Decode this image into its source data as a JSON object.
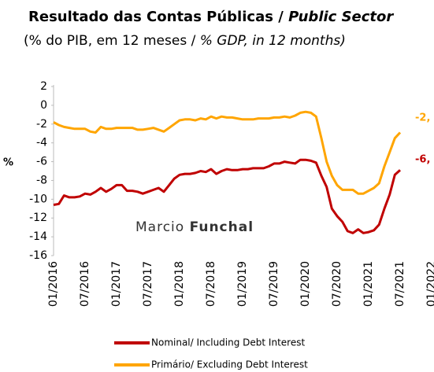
{
  "chart_data": {
    "type": "line",
    "title": "Resultado das Contas Públicas /",
    "title_en": "Public Sector",
    "subtitle": "(% do PIB, em 12 meses /",
    "subtitle_en": "% GDP, in 12 months)",
    "y_label": "%",
    "watermark": "Marcio",
    "watermark_bold": "Funchal",
    "categories": [
      "01/2016",
      null,
      null,
      null,
      null,
      null,
      "07/2016",
      null,
      null,
      null,
      null,
      null,
      "01/2017",
      null,
      null,
      null,
      null,
      null,
      "07/2017",
      null,
      null,
      null,
      null,
      null,
      "01/2018",
      null,
      null,
      null,
      null,
      null,
      "07/2018",
      null,
      null,
      null,
      null,
      null,
      "01/2019",
      null,
      null,
      null,
      null,
      null,
      "07/2019",
      null,
      null,
      null,
      null,
      null,
      "01/2020",
      null,
      null,
      null,
      null,
      null,
      "07/2020",
      null,
      null,
      null,
      null,
      null,
      "01/2021",
      null,
      null,
      null,
      null,
      null,
      "07/2021",
      null,
      null,
      null,
      null,
      null,
      "01/2022"
    ],
    "series": [
      {
        "name": "Nominal/ Including Debt Interest",
        "color": "#c00000",
        "values": [
          -10.6,
          -10.5,
          -9.6,
          -9.8,
          -9.8,
          -9.7,
          -9.4,
          -9.5,
          -9.2,
          -8.8,
          -9.2,
          -8.9,
          -8.5,
          -8.5,
          -9.1,
          -9.1,
          -9.2,
          -9.4,
          -9.2,
          -9.0,
          -8.8,
          -9.2,
          -8.5,
          -7.8,
          -7.4,
          -7.3,
          -7.3,
          -7.2,
          -7.0,
          -7.1,
          -6.8,
          -7.3,
          -7.0,
          -6.8,
          -6.9,
          -6.9,
          -6.8,
          -6.8,
          -6.7,
          -6.7,
          -6.7,
          -6.5,
          -6.2,
          -6.2,
          -6.0,
          -6.1,
          -6.2,
          -5.8,
          -5.8,
          -5.9,
          -6.1,
          -7.5,
          -8.7,
          -11.0,
          -11.8,
          -12.4,
          -13.4,
          -13.6,
          -13.2,
          -13.6,
          -13.5,
          -13.3,
          -12.7,
          -11.0,
          -9.5,
          -7.4,
          -6.9,
          null,
          null,
          null,
          null,
          null,
          null
        ]
      },
      {
        "name": "Primário/ Excluding Debt Interest",
        "color": "#ffa500",
        "values": [
          -1.8,
          -2.1,
          -2.3,
          -2.4,
          -2.5,
          -2.5,
          -2.5,
          -2.8,
          -2.9,
          -2.3,
          -2.5,
          -2.5,
          -2.4,
          -2.4,
          -2.4,
          -2.4,
          -2.6,
          -2.6,
          -2.5,
          -2.4,
          -2.6,
          -2.8,
          -2.4,
          -2.0,
          -1.6,
          -1.5,
          -1.5,
          -1.6,
          -1.4,
          -1.5,
          -1.2,
          -1.4,
          -1.2,
          -1.3,
          -1.3,
          -1.4,
          -1.5,
          -1.5,
          -1.5,
          -1.4,
          -1.4,
          -1.4,
          -1.3,
          -1.3,
          -1.2,
          -1.3,
          -1.1,
          -0.8,
          -0.7,
          -0.8,
          -1.2,
          -3.5,
          -6.0,
          -7.5,
          -8.5,
          -9.0,
          -9.0,
          -9.0,
          -9.4,
          -9.4,
          -9.1,
          -8.8,
          -8.3,
          -6.5,
          -5.0,
          -3.5,
          -2.9,
          null,
          null,
          null,
          null,
          null,
          null
        ]
      }
    ],
    "annotations": [
      {
        "text": "-2,",
        "color": "#ffa500"
      },
      {
        "text": "-6,",
        "color": "#c00000"
      }
    ],
    "ylim": [
      -16,
      2
    ],
    "yticks": [
      -16,
      -14,
      -12,
      -10,
      -8,
      -6,
      -4,
      -2,
      0,
      2
    ]
  }
}
